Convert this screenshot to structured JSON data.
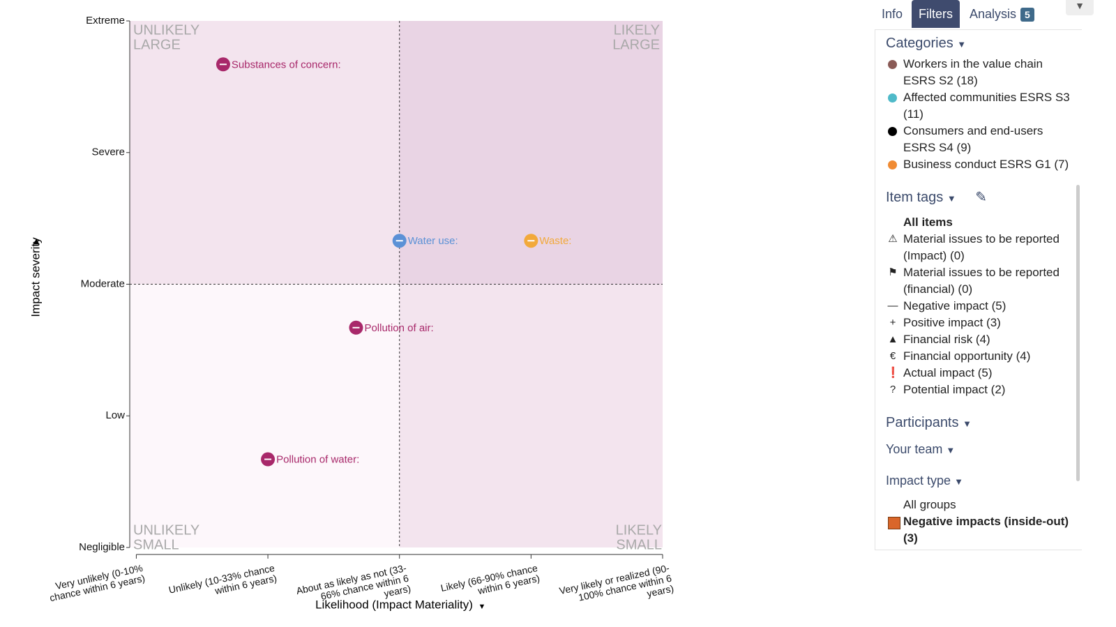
{
  "chart_data": {
    "type": "scatter",
    "x_label": "Likelihood (Impact Materiality)",
    "y_label": "Impact severity",
    "xlim": [
      -0.05,
      4
    ],
    "ylim": [
      0,
      4
    ],
    "xticks": [
      {
        "value": 0,
        "label": "Very unlikely (0-10% chance within 6 years)"
      },
      {
        "value": 1,
        "label": "Unlikely (10-33% chance within 6 years)"
      },
      {
        "value": 2,
        "label": "About as likely as not (33-66% chance within 6 years)"
      },
      {
        "value": 3,
        "label": "Likely (66-90% chance within 6 years)"
      },
      {
        "value": 4,
        "label": "Very likely or realized (90-100% chance within 6 years)"
      }
    ],
    "yticks": [
      {
        "value": 0,
        "label": "Negligible"
      },
      {
        "value": 1,
        "label": "Low"
      },
      {
        "value": 2,
        "label": "Moderate"
      },
      {
        "value": 3,
        "label": "Severe"
      },
      {
        "value": 4,
        "label": "Extreme"
      }
    ],
    "split": {
      "x": 2,
      "y": 2
    },
    "quadrants": {
      "top_left": [
        "UNLIKELY",
        "LARGE"
      ],
      "top_right": [
        "LIKELY",
        "LARGE"
      ],
      "bottom_left": [
        "UNLIKELY",
        "SMALL"
      ],
      "bottom_right": [
        "LIKELY",
        "SMALL"
      ]
    },
    "points": [
      {
        "label": "Substances of concern:",
        "x": 0.66,
        "y": 3.67,
        "color": "#a8286a"
      },
      {
        "label": "Water use:",
        "x": 2.0,
        "y": 2.33,
        "color": "#5b91d6"
      },
      {
        "label": "Waste:",
        "x": 3.0,
        "y": 2.33,
        "color": "#f2a93b"
      },
      {
        "label": "Pollution of air:",
        "x": 1.67,
        "y": 1.67,
        "color": "#a8286a"
      },
      {
        "label": "Pollution of water:",
        "x": 1.0,
        "y": 0.67,
        "color": "#a8286a"
      }
    ]
  },
  "sidebar": {
    "tabs": [
      "Info",
      "Filters",
      "Analysis"
    ],
    "active_tab": 1,
    "analysis_badge": 5,
    "categories": {
      "title": "Categories",
      "items": [
        {
          "label": "Workers in the value chain ESRS S2 (18)",
          "color": "#8a5a56"
        },
        {
          "label": "Affected communities ESRS S3 (11)",
          "color": "#4fbac9"
        },
        {
          "label": "Consumers and end-users ESRS S4 (9)",
          "color": "#000000"
        },
        {
          "label": "Business conduct ESRS G1 (7)",
          "color": "#f08b33"
        }
      ]
    },
    "item_tags": {
      "title": "Item tags",
      "all": "All items",
      "items": [
        "Material issues to be reported (Impact) (0)",
        "Material issues to be reported (financial) (0)",
        "Negative impact (5)",
        "Positive impact (3)",
        "Financial risk (4)",
        "Financial opportunity (4)",
        "Actual impact (5)",
        "Potential impact (2)"
      ]
    },
    "participants": {
      "title": "Participants",
      "team": "Your team"
    },
    "impact_type": {
      "title": "Impact type",
      "all": "All groups",
      "items": [
        {
          "label": "Negative impacts (inside-out) (3)",
          "color": "#d9662a"
        }
      ]
    }
  }
}
